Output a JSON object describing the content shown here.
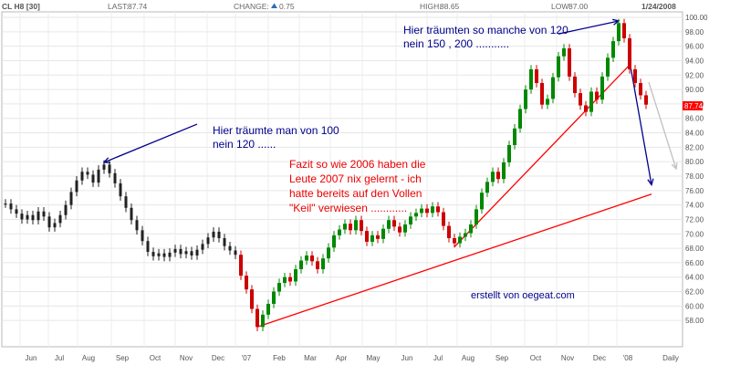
{
  "header": {
    "symbol": "CL H8 [30]",
    "last_label": "LAST:",
    "last_value": "87.74",
    "change_label": "CHANGE:",
    "change_value": "0.75",
    "high_label": "HIGH:",
    "high_value": "88.65",
    "low_label": "LOW:",
    "low_value": "87.00",
    "date": "1/24/2008"
  },
  "chart_data": {
    "type": "line",
    "title": "",
    "ylim": [
      56,
      100
    ],
    "y_ticks": [
      100,
      98,
      96,
      94,
      92,
      90,
      88,
      86,
      84,
      82,
      80,
      78,
      76,
      74,
      72,
      70,
      68,
      66,
      64,
      62,
      60,
      58
    ],
    "y_tick_labels": [
      "100.00",
      "98.00",
      "96.00",
      "94.00",
      "92.00",
      "90.00",
      "88.00",
      "86.00",
      "84.00",
      "82.00",
      "80.00",
      "78.00",
      "76.00",
      "74.00",
      "72.00",
      "70.00",
      "68.00",
      "66.00",
      "64.00",
      "62.00",
      "60.00",
      "58.00"
    ],
    "x_ticks": [
      "Jun",
      "Jul",
      "Aug",
      "Sep",
      "Oct",
      "Nov",
      "Dec",
      "'07",
      "Feb",
      "Mar",
      "Apr",
      "May",
      "Jun",
      "Jul",
      "Aug",
      "Sep",
      "Oct",
      "Nov",
      "Dec",
      "'08",
      "Daily"
    ],
    "last_price_label": "87.74",
    "series": [
      {
        "values": [
          [
            0,
            74.2
          ],
          [
            4,
            73.4
          ],
          [
            8,
            72.8
          ],
          [
            12,
            72.0
          ],
          [
            16,
            72.6
          ],
          [
            20,
            71.9
          ],
          [
            24,
            73.1
          ],
          [
            28,
            72.4
          ],
          [
            32,
            70.9
          ],
          [
            36,
            71.5
          ],
          [
            40,
            72.6
          ],
          [
            44,
            74.0
          ],
          [
            48,
            75.8
          ],
          [
            52,
            77.4
          ],
          [
            56,
            78.6
          ],
          [
            60,
            78.2
          ],
          [
            64,
            77.1
          ],
          [
            68,
            78.9
          ],
          [
            72,
            79.6
          ],
          [
            76,
            78.4
          ],
          [
            80,
            77.0
          ],
          [
            84,
            75.2
          ],
          [
            88,
            73.6
          ],
          [
            92,
            71.9
          ],
          [
            96,
            70.5
          ],
          [
            100,
            69.0
          ],
          [
            104,
            67.5
          ],
          [
            108,
            66.9
          ],
          [
            112,
            67.3
          ],
          [
            116,
            66.8
          ],
          [
            120,
            67.4
          ],
          [
            124,
            67.9
          ],
          [
            128,
            67.2
          ],
          [
            132,
            67.6
          ],
          [
            136,
            67.0
          ],
          [
            140,
            67.8
          ],
          [
            144,
            68.6
          ],
          [
            148,
            69.5
          ],
          [
            152,
            70.3
          ],
          [
            156,
            69.4
          ],
          [
            160,
            68.3
          ],
          [
            164,
            67.7
          ],
          [
            168,
            67.1
          ],
          [
            172,
            64.2
          ],
          [
            176,
            62.3
          ],
          [
            180,
            59.6
          ],
          [
            184,
            57.1
          ],
          [
            188,
            58.8
          ],
          [
            192,
            60.3
          ],
          [
            196,
            62.0
          ],
          [
            200,
            63.2
          ],
          [
            204,
            64.0
          ],
          [
            208,
            63.4
          ],
          [
            212,
            65.1
          ],
          [
            216,
            66.3
          ],
          [
            220,
            67.0
          ],
          [
            224,
            66.2
          ],
          [
            228,
            65.1
          ],
          [
            232,
            66.6
          ],
          [
            236,
            68.1
          ],
          [
            240,
            69.8
          ],
          [
            244,
            70.6
          ],
          [
            248,
            71.4
          ],
          [
            252,
            70.5
          ],
          [
            256,
            71.9
          ],
          [
            260,
            70.4
          ],
          [
            264,
            68.9
          ],
          [
            268,
            69.8
          ],
          [
            272,
            69.3
          ],
          [
            276,
            70.7
          ],
          [
            280,
            71.9
          ],
          [
            284,
            71.0
          ],
          [
            288,
            70.2
          ],
          [
            292,
            71.3
          ],
          [
            296,
            72.4
          ],
          [
            300,
            72.9
          ],
          [
            304,
            73.5
          ],
          [
            308,
            72.9
          ],
          [
            312,
            73.8
          ],
          [
            316,
            73.0
          ],
          [
            320,
            71.1
          ],
          [
            324,
            69.4
          ],
          [
            328,
            68.7
          ],
          [
            332,
            69.6
          ],
          [
            336,
            70.1
          ],
          [
            340,
            71.3
          ],
          [
            344,
            73.4
          ],
          [
            348,
            75.7
          ],
          [
            352,
            77.2
          ],
          [
            356,
            78.6
          ],
          [
            360,
            77.6
          ],
          [
            364,
            79.9
          ],
          [
            368,
            82.3
          ],
          [
            372,
            84.6
          ],
          [
            376,
            87.3
          ],
          [
            380,
            90.0
          ],
          [
            384,
            92.8
          ],
          [
            388,
            90.9
          ],
          [
            392,
            87.9
          ],
          [
            396,
            88.7
          ],
          [
            400,
            91.7
          ],
          [
            404,
            94.6
          ],
          [
            408,
            95.7
          ],
          [
            412,
            91.8
          ],
          [
            416,
            89.5
          ],
          [
            420,
            87.8
          ],
          [
            424,
            86.9
          ],
          [
            428,
            89.7
          ],
          [
            432,
            88.6
          ],
          [
            436,
            91.8
          ],
          [
            440,
            94.4
          ],
          [
            444,
            96.7
          ],
          [
            448,
            99.2
          ],
          [
            452,
            97.1
          ],
          [
            456,
            92.8
          ],
          [
            460,
            90.9
          ],
          [
            464,
            89.2
          ],
          [
            468,
            87.9
          ]
        ]
      }
    ],
    "trendlines": [
      {
        "color": "#ff0000",
        "from": [
          184,
          57.1
        ],
        "to": [
          472,
          75.5
        ]
      },
      {
        "color": "#ff0000",
        "from": [
          328,
          68.2
        ],
        "to": [
          456,
          93.4
        ]
      },
      {
        "color": "#00008b",
        "from": [
          404,
          97.7
        ],
        "to": [
          448,
          99.5
        ]
      },
      {
        "color": "#00008b",
        "from": [
          456,
          93.9
        ],
        "to": [
          472,
          76.8
        ]
      },
      {
        "color": "#c0c0c0",
        "from": [
          470,
          91.0
        ],
        "to": [
          490,
          79.0
        ]
      },
      {
        "color": "#00008b",
        "from": [
          140,
          85.2
        ],
        "to": [
          72,
          79.9
        ]
      }
    ],
    "annotations": {
      "note_2006": [
        "Hier träumte man von 100",
        "nein 120 ......"
      ],
      "note_2008": [
        "Hier träumten so manche von 120",
        "nein 150 , 200 ..........."
      ],
      "fazit": [
        "Fazit so wie 2006 haben die",
        "Leute 2007 nix gelernt - ich",
        "hatte bereits auf den Vollen",
        "\"Keil\" verwiesen ............"
      ],
      "credit": "erstellt von oegeat.com"
    }
  }
}
